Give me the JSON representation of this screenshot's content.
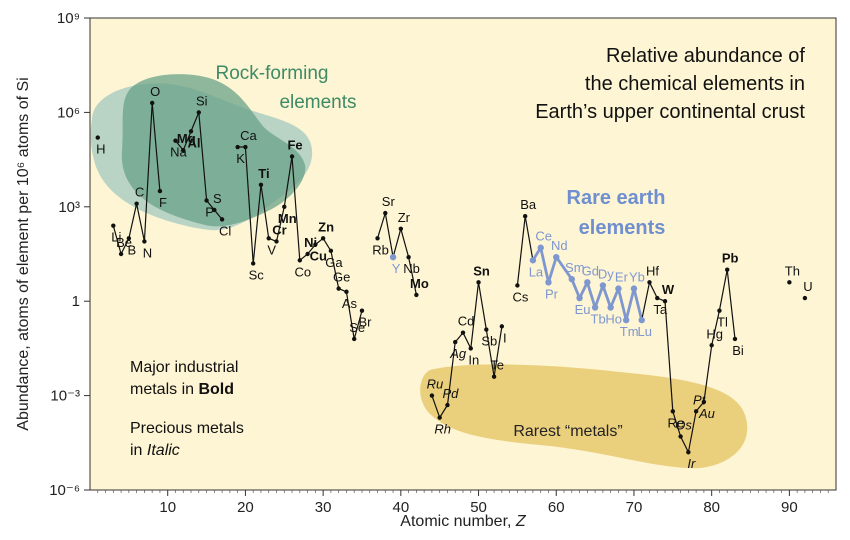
{
  "chart_data": {
    "type": "line",
    "title": [
      "Relative abundance of",
      "the chemical elements in",
      "Earth’s upper continental crust"
    ],
    "xlabel": "Atomic number, ",
    "xlabel_var": "Z",
    "ylabel": "Abundance, atoms of element per 10⁶ atoms of Si",
    "xlim": [
      0,
      96
    ],
    "ylim_log10": [
      -6,
      9
    ],
    "x_ticks": [
      10,
      20,
      30,
      40,
      50,
      60,
      70,
      80,
      90
    ],
    "y_ticks": [
      {
        "log": 9,
        "label": "10⁹"
      },
      {
        "log": 6,
        "label": "10⁶"
      },
      {
        "log": 3,
        "label": "10³"
      },
      {
        "log": 0,
        "label": "1"
      },
      {
        "log": -3,
        "label": "10⁻³"
      },
      {
        "log": -6,
        "label": "10⁻⁶"
      }
    ],
    "scale_y": "log",
    "grid": false,
    "regions": [
      {
        "name": "Rock-forming elements",
        "lines": [
          "Rock-forming",
          "elements"
        ],
        "color": "#5f9e86"
      },
      {
        "name": "Rare earth elements",
        "lines": [
          "Rare earth",
          "elements"
        ],
        "color": "#7f97cf"
      },
      {
        "name": "Rarest “metals”",
        "lines": [
          "Rarest “metals”"
        ],
        "color": "#e3c569"
      }
    ],
    "notes": {
      "industrial_line1": "Major industrial",
      "industrial_line2_prefix": "metals in ",
      "industrial_line2_emph": "Bold",
      "precious_line1": "Precious metals",
      "precious_line2_prefix": "in ",
      "precious_line2_emph": "Italic"
    },
    "series": [
      {
        "name": "Elements",
        "points": [
          {
            "z": 1,
            "sym": "H",
            "logA": 5.2,
            "style": "normal"
          },
          {
            "z": 3,
            "sym": "Li",
            "logA": 2.4,
            "style": "normal"
          },
          {
            "z": 4,
            "sym": "Be",
            "logA": 1.5,
            "style": "normal"
          },
          {
            "z": 5,
            "sym": "B",
            "logA": 2.0,
            "style": "normal"
          },
          {
            "z": 6,
            "sym": "C",
            "logA": 3.1,
            "style": "normal"
          },
          {
            "z": 7,
            "sym": "N",
            "logA": 1.9,
            "style": "normal"
          },
          {
            "z": 8,
            "sym": "O",
            "logA": 6.3,
            "style": "normal"
          },
          {
            "z": 9,
            "sym": "F",
            "logA": 3.5,
            "style": "normal"
          },
          {
            "z": 11,
            "sym": "Na",
            "logA": 5.1,
            "style": "normal"
          },
          {
            "z": 12,
            "sym": "Mg",
            "logA": 4.8,
            "style": "bold"
          },
          {
            "z": 13,
            "sym": "Al",
            "logA": 5.4,
            "style": "bold"
          },
          {
            "z": 14,
            "sym": "Si",
            "logA": 6.0,
            "style": "normal"
          },
          {
            "z": 15,
            "sym": "P",
            "logA": 3.2,
            "style": "normal"
          },
          {
            "z": 16,
            "sym": "S",
            "logA": 2.9,
            "style": "normal"
          },
          {
            "z": 17,
            "sym": "Cl",
            "logA": 2.6,
            "style": "normal"
          },
          {
            "z": 19,
            "sym": "K",
            "logA": 4.9,
            "style": "normal"
          },
          {
            "z": 20,
            "sym": "Ca",
            "logA": 4.9,
            "style": "normal"
          },
          {
            "z": 21,
            "sym": "Sc",
            "logA": 1.2,
            "style": "normal"
          },
          {
            "z": 22,
            "sym": "Ti",
            "logA": 3.7,
            "style": "bold"
          },
          {
            "z": 23,
            "sym": "V",
            "logA": 2.0,
            "style": "normal"
          },
          {
            "z": 24,
            "sym": "Cr",
            "logA": 1.9,
            "style": "bold"
          },
          {
            "z": 25,
            "sym": "Mn",
            "logA": 3.0,
            "style": "bold"
          },
          {
            "z": 26,
            "sym": "Fe",
            "logA": 4.6,
            "style": "bold"
          },
          {
            "z": 27,
            "sym": "Co",
            "logA": 1.3,
            "style": "normal"
          },
          {
            "z": 28,
            "sym": "Ni",
            "logA": 1.5,
            "style": "bold"
          },
          {
            "z": 29,
            "sym": "Cu",
            "logA": 1.8,
            "style": "bold"
          },
          {
            "z": 30,
            "sym": "Zn",
            "logA": 2.0,
            "style": "bold"
          },
          {
            "z": 31,
            "sym": "Ga",
            "logA": 1.6,
            "style": "normal"
          },
          {
            "z": 32,
            "sym": "Ge",
            "logA": 0.4,
            "style": "normal"
          },
          {
            "z": 33,
            "sym": "As",
            "logA": 0.3,
            "style": "normal"
          },
          {
            "z": 34,
            "sym": "Se",
            "logA": -1.2,
            "style": "normal"
          },
          {
            "z": 35,
            "sym": "Br",
            "logA": -0.3,
            "style": "normal"
          },
          {
            "z": 37,
            "sym": "Rb",
            "logA": 2.0,
            "style": "normal"
          },
          {
            "z": 38,
            "sym": "Sr",
            "logA": 2.8,
            "style": "normal"
          },
          {
            "z": 39,
            "sym": "Y",
            "logA": 1.4,
            "style": "ree"
          },
          {
            "z": 40,
            "sym": "Zr",
            "logA": 2.3,
            "style": "normal"
          },
          {
            "z": 41,
            "sym": "Nb",
            "logA": 1.4,
            "style": "normal"
          },
          {
            "z": 42,
            "sym": "Mo",
            "logA": 0.2,
            "style": "bold"
          },
          {
            "z": 44,
            "sym": "Ru",
            "logA": -3.0,
            "style": "italic"
          },
          {
            "z": 45,
            "sym": "Rh",
            "logA": -3.7,
            "style": "italic"
          },
          {
            "z": 46,
            "sym": "Pd",
            "logA": -3.3,
            "style": "italic"
          },
          {
            "z": 47,
            "sym": "Ag",
            "logA": -1.3,
            "style": "italic"
          },
          {
            "z": 48,
            "sym": "Cd",
            "logA": -1.0,
            "style": "normal"
          },
          {
            "z": 49,
            "sym": "In",
            "logA": -1.5,
            "style": "normal"
          },
          {
            "z": 50,
            "sym": "Sn",
            "logA": 0.6,
            "style": "bold"
          },
          {
            "z": 51,
            "sym": "Sb",
            "logA": -0.9,
            "style": "normal"
          },
          {
            "z": 52,
            "sym": "Te",
            "logA": -2.4,
            "style": "normal"
          },
          {
            "z": 53,
            "sym": "I",
            "logA": -0.8,
            "style": "normal"
          },
          {
            "z": 55,
            "sym": "Cs",
            "logA": 0.5,
            "style": "normal"
          },
          {
            "z": 56,
            "sym": "Ba",
            "logA": 2.7,
            "style": "normal"
          },
          {
            "z": 57,
            "sym": "La",
            "logA": 1.3,
            "style": "ree"
          },
          {
            "z": 58,
            "sym": "Ce",
            "logA": 1.7,
            "style": "ree"
          },
          {
            "z": 59,
            "sym": "Pr",
            "logA": 0.6,
            "style": "ree"
          },
          {
            "z": 60,
            "sym": "Nd",
            "logA": 1.4,
            "style": "ree"
          },
          {
            "z": 62,
            "sym": "Sm",
            "logA": 0.7,
            "style": "ree"
          },
          {
            "z": 63,
            "sym": "Eu",
            "logA": 0.1,
            "style": "ree"
          },
          {
            "z": 64,
            "sym": "Gd",
            "logA": 0.6,
            "style": "ree"
          },
          {
            "z": 65,
            "sym": "Tb",
            "logA": -0.2,
            "style": "ree"
          },
          {
            "z": 66,
            "sym": "Dy",
            "logA": 0.5,
            "style": "ree"
          },
          {
            "z": 67,
            "sym": "Ho",
            "logA": -0.2,
            "style": "ree"
          },
          {
            "z": 68,
            "sym": "Er",
            "logA": 0.4,
            "style": "ree"
          },
          {
            "z": 69,
            "sym": "Tm",
            "logA": -0.6,
            "style": "ree"
          },
          {
            "z": 70,
            "sym": "Yb",
            "logA": 0.4,
            "style": "ree"
          },
          {
            "z": 71,
            "sym": "Lu",
            "logA": -0.6,
            "style": "ree"
          },
          {
            "z": 72,
            "sym": "Hf",
            "logA": 0.6,
            "style": "normal"
          },
          {
            "z": 73,
            "sym": "Ta",
            "logA": 0.1,
            "style": "normal"
          },
          {
            "z": 74,
            "sym": "W",
            "logA": 0.0,
            "style": "bold"
          },
          {
            "z": 75,
            "sym": "Re",
            "logA": -3.5,
            "style": "normal"
          },
          {
            "z": 76,
            "sym": "Os",
            "logA": -4.3,
            "style": "italic"
          },
          {
            "z": 77,
            "sym": "Ir",
            "logA": -4.8,
            "style": "italic"
          },
          {
            "z": 78,
            "sym": "Pt",
            "logA": -3.5,
            "style": "italic"
          },
          {
            "z": 79,
            "sym": "Au",
            "logA": -3.2,
            "style": "italic"
          },
          {
            "z": 80,
            "sym": "Hg",
            "logA": -1.4,
            "style": "normal"
          },
          {
            "z": 81,
            "sym": "Tl",
            "logA": -0.3,
            "style": "normal"
          },
          {
            "z": 82,
            "sym": "Pb",
            "logA": 1.0,
            "style": "bold"
          },
          {
            "z": 83,
            "sym": "Bi",
            "logA": -1.2,
            "style": "normal"
          },
          {
            "z": 90,
            "sym": "Th",
            "logA": 0.6,
            "style": "normal"
          },
          {
            "z": 92,
            "sym": "U",
            "logA": 0.1,
            "style": "normal"
          }
        ],
        "segments": [
          [
            1
          ],
          [
            3,
            4,
            5,
            6,
            7,
            8,
            9
          ],
          [
            11,
            12,
            13,
            14,
            15,
            16,
            17
          ],
          [
            19,
            20,
            21,
            22,
            23,
            24,
            25,
            26,
            27,
            28,
            29,
            30,
            31,
            32,
            33,
            34,
            35
          ],
          [
            37,
            38,
            39,
            40,
            41,
            42
          ],
          [
            44,
            45,
            46,
            47,
            48,
            49,
            50,
            51,
            52,
            53
          ],
          [
            55,
            56,
            57,
            58,
            59,
            60,
            62,
            63,
            64,
            65,
            66,
            67,
            68,
            69,
            70,
            71,
            72,
            73,
            74,
            75,
            76,
            77,
            78,
            79,
            80,
            81,
            82,
            83
          ],
          [
            90
          ],
          [
            92
          ]
        ]
      }
    ]
  }
}
